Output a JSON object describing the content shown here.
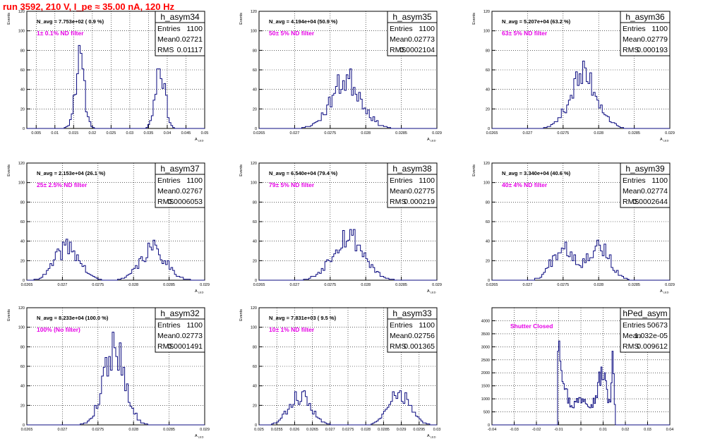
{
  "page": {
    "title": "run 3592,   210 V, I_pe ≈ 35.00 nA, 120 Hz",
    "title_color": "#ff0000",
    "histogram_color": "#0b0b80",
    "annotation_color": "#e600e6"
  },
  "chart_data": [
    {
      "type": "bar",
      "name": "h_asym34",
      "stats": {
        "entries_label": "Entries",
        "entries": "1100",
        "mean_label": "Mean",
        "mean": "0.02721",
        "rms_label": "RMS",
        "rms": "0.01117"
      },
      "navg": "N_avg = 7.753e+02  ( 0.9 %)",
      "annotation": "1± 0.1% ND filter",
      "xlabel": "A",
      "xlabel_sub": "LED",
      "ylabel": "Events",
      "xlim": [
        0.0025,
        0.05
      ],
      "ylim": [
        0,
        120
      ],
      "xticks": [
        "0.005",
        "0.01",
        "0.015",
        "0.02",
        "0.025",
        "0.03",
        "0.035",
        "0.04",
        "0.045",
        "0.05"
      ],
      "xtick_values": [
        0.005,
        0.01,
        0.015,
        0.02,
        0.025,
        0.03,
        0.035,
        0.04,
        0.045,
        0.05
      ],
      "yticks": [
        0,
        20,
        40,
        60,
        80,
        100,
        120
      ],
      "peaks": [
        {
          "c": 0.0166,
          "w": 0.00125,
          "h": 68
        },
        {
          "c": 0.0381,
          "w": 0.00125,
          "h": 66
        }
      ],
      "seed": 11
    },
    {
      "type": "bar",
      "name": "h_asym35",
      "stats": {
        "entries_label": "Entries",
        "entries": "1100",
        "mean_label": "Mean",
        "mean": "0.02773",
        "rms_label": "RMS",
        "rms": "0.0002104"
      },
      "navg": "N_avg = 4.194e+04 (50.9 %)",
      "annotation": "50± 5% ND filter",
      "xlabel": "A",
      "xlabel_sub": "LED",
      "ylabel": "Events",
      "xlim": [
        0.0265,
        0.029
      ],
      "ylim": [
        0,
        120
      ],
      "xticks": [
        "0.0265",
        "0.027",
        "0.0275",
        "0.028",
        "0.0285",
        "0.029"
      ],
      "xtick_values": [
        0.0265,
        0.027,
        0.0275,
        0.028,
        0.0285,
        0.029
      ],
      "yticks": [
        0,
        20,
        40,
        60,
        80,
        100,
        120
      ],
      "peaks": [
        {
          "c": 0.02773,
          "w": 0.00021,
          "h": 50
        }
      ],
      "seed": 23
    },
    {
      "type": "bar",
      "name": "h_asym36",
      "stats": {
        "entries_label": "Entries",
        "entries": "1100",
        "mean_label": "Mean",
        "mean": "0.02779",
        "rms_label": "RMS",
        "rms": "0.000193"
      },
      "navg": "N_avg = 5.207e+04 (63.2 %)",
      "annotation": "63± 5% ND filter",
      "xlabel": "A",
      "xlabel_sub": "LED",
      "ylabel": "Events",
      "xlim": [
        0.0265,
        0.029
      ],
      "ylim": [
        0,
        120
      ],
      "xticks": [
        "0.0265",
        "0.027",
        "0.0275",
        "0.028",
        "0.0285",
        "0.029"
      ],
      "xtick_values": [
        0.0265,
        0.027,
        0.0275,
        0.028,
        0.0285,
        0.029
      ],
      "yticks": [
        0,
        20,
        40,
        60,
        80,
        100,
        120
      ],
      "peaks": [
        {
          "c": 0.02779,
          "w": 0.000193,
          "h": 54
        }
      ],
      "seed": 37
    },
    {
      "type": "bar",
      "name": "h_asym37",
      "stats": {
        "entries_label": "Entries",
        "entries": "1100",
        "mean_label": "Mean",
        "mean": "0.02767",
        "rms_label": "RMS",
        "rms": "0.0006053"
      },
      "navg": "N_avg = 2.153e+04 (26.1 %)",
      "annotation": "25± 2.5% ND filter",
      "xlabel": "A",
      "xlabel_sub": "LED",
      "ylabel": "Events",
      "xlim": [
        0.0265,
        0.029
      ],
      "ylim": [
        0,
        120
      ],
      "xticks": [
        "0.0265",
        "0.027",
        "0.0275",
        "0.028",
        "0.0285",
        "0.029"
      ],
      "xtick_values": [
        0.0265,
        0.027,
        0.0275,
        0.028,
        0.0285,
        0.029
      ],
      "yticks": [
        0,
        20,
        40,
        60,
        80,
        100,
        120
      ],
      "peaks": [
        {
          "c": 0.02707,
          "w": 0.00017,
          "h": 34
        },
        {
          "c": 0.02828,
          "w": 0.00018,
          "h": 32
        }
      ],
      "seed": 41
    },
    {
      "type": "bar",
      "name": "h_asym38",
      "stats": {
        "entries_label": "Entries",
        "entries": "1100",
        "mean_label": "Mean",
        "mean": "0.02775",
        "rms_label": "RMS",
        "rms": "0.000219"
      },
      "navg": "N_avg = 6.540e+04 (79.4 %)",
      "annotation": "79± 5% ND filter",
      "xlabel": "A",
      "xlabel_sub": "LED",
      "ylabel": "Events",
      "xlim": [
        0.0265,
        0.029
      ],
      "ylim": [
        0,
        120
      ],
      "xticks": [
        "0.0265",
        "0.027",
        "0.0275",
        "0.028",
        "0.0285",
        "0.029"
      ],
      "xtick_values": [
        0.0265,
        0.027,
        0.0275,
        0.028,
        0.0285,
        0.029
      ],
      "yticks": [
        0,
        20,
        40,
        60,
        80,
        100,
        120
      ],
      "peaks": [
        {
          "c": 0.02775,
          "w": 0.000219,
          "h": 46
        }
      ],
      "seed": 53
    },
    {
      "type": "bar",
      "name": "h_asym39",
      "stats": {
        "entries_label": "Entries",
        "entries": "1100",
        "mean_label": "Mean",
        "mean": "0.02774",
        "rms_label": "RMS",
        "rms": "0.0002644"
      },
      "navg": "N_avg = 3.340e+04 (40.6 %)",
      "annotation": "40± 4% ND filter",
      "xlabel": "A",
      "xlabel_sub": "LED",
      "ylabel": "Events",
      "xlim": [
        0.0265,
        0.029
      ],
      "ylim": [
        0,
        120
      ],
      "xticks": [
        "0.0265",
        "0.027",
        "0.0275",
        "0.028",
        "0.0285",
        "0.029"
      ],
      "xtick_values": [
        0.0265,
        0.027,
        0.0275,
        0.028,
        0.0285,
        0.029
      ],
      "yticks": [
        0,
        20,
        40,
        60,
        80,
        100,
        120
      ],
      "peaks": [
        {
          "c": 0.0275,
          "w": 0.00015,
          "h": 36
        },
        {
          "c": 0.028,
          "w": 0.00015,
          "h": 36
        }
      ],
      "seed": 67
    },
    {
      "type": "bar",
      "name": "h_asym32",
      "stats": {
        "entries_label": "Entries",
        "entries": "1100",
        "mean_label": "Mean",
        "mean": "0.02773",
        "rms_label": "RMS",
        "rms": "0.0001491"
      },
      "navg": "N_avg = 8.233e+04 (100.0 %)",
      "annotation": "100% (No filter)",
      "xlabel": "A",
      "xlabel_sub": "LED",
      "ylabel": "Events",
      "xlim": [
        0.0265,
        0.029
      ],
      "ylim": [
        0,
        120
      ],
      "xticks": [
        "0.0265",
        "0.027",
        "0.0275",
        "0.028",
        "0.0285",
        "0.029"
      ],
      "xtick_values": [
        0.0265,
        0.027,
        0.0275,
        0.028,
        0.0285,
        0.029
      ],
      "yticks": [
        0,
        20,
        40,
        60,
        80,
        100,
        120
      ],
      "peaks": [
        {
          "c": 0.02773,
          "w": 0.000149,
          "h": 80
        }
      ],
      "seed": 79
    },
    {
      "type": "bar",
      "name": "h_asym33",
      "stats": {
        "entries_label": "Entries",
        "entries": "1100",
        "mean_label": "Mean",
        "mean": "0.02756",
        "rms_label": "RMS",
        "rms": "0.001365"
      },
      "navg": "N_avg = 7.831e+03 ( 9.5 %)",
      "annotation": "10± 1% ND filter",
      "xlabel": "A",
      "xlabel_sub": "LED",
      "ylabel": "Events",
      "xlim": [
        0.025,
        0.03
      ],
      "ylim": [
        0,
        120
      ],
      "xticks": [
        "0.025",
        "0.0255",
        "0.026",
        "0.0265",
        "0.027",
        "0.0275",
        "0.028",
        "0.0285",
        "0.029",
        "0.0295",
        "0.03"
      ],
      "xtick_values": [
        0.025,
        0.0255,
        0.026,
        0.0265,
        0.027,
        0.0275,
        0.028,
        0.0285,
        0.029,
        0.0295,
        0.03
      ],
      "yticks": [
        0,
        20,
        40,
        60,
        80,
        100,
        120
      ],
      "peaks": [
        {
          "c": 0.02615,
          "w": 0.0003,
          "h": 30
        },
        {
          "c": 0.02895,
          "w": 0.0003,
          "h": 32
        }
      ],
      "seed": 83
    },
    {
      "type": "bar",
      "name": "hPed_asym",
      "stats": {
        "entries_label": "Entries",
        "entries": "50673",
        "mean_label": "Mean",
        "mean": "1.032e-05",
        "rms_label": "RMS",
        "rms": "0.009612"
      },
      "navg": "",
      "annotation": "Shutter Closed",
      "xlabel": "",
      "xlabel_sub": "",
      "ylabel": "",
      "xlim": [
        -0.04,
        0.04
      ],
      "ylim": [
        0,
        4500
      ],
      "xticks": [
        "-0.04",
        "-0.03",
        "-0.02",
        "-0.01",
        "0",
        "0.01",
        "0.02",
        "0.03",
        "0.04"
      ],
      "xtick_values": [
        -0.04,
        -0.03,
        -0.02,
        -0.01,
        0,
        0.01,
        0.02,
        0.03,
        0.04
      ],
      "yticks": [
        0,
        500,
        1000,
        1500,
        2000,
        2500,
        3000,
        3500,
        4000
      ],
      "pedestal": true,
      "seed": 97
    }
  ]
}
